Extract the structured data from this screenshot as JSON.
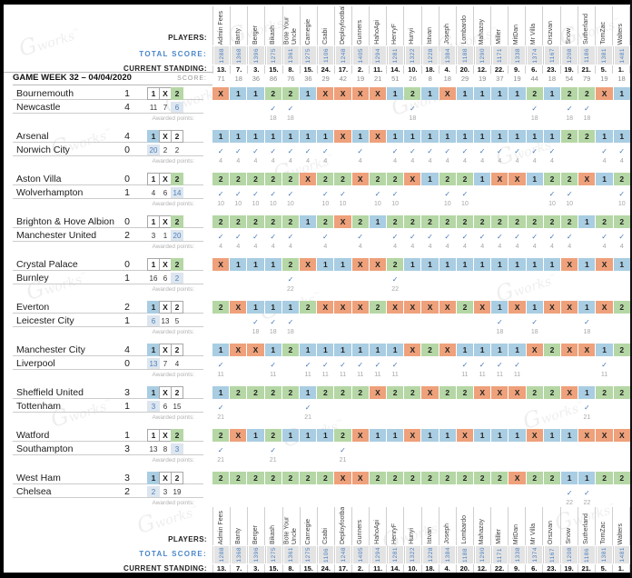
{
  "labels": {
    "players": "PLAYERS:",
    "total_score": "TOTAL SCORE:",
    "current_standing": "CURRENT STANDING:",
    "game_week": "GAME WEEK 32 – 04/04/2020",
    "score": "SCORE:",
    "awarded_points": "Awarded points:"
  },
  "outcome_labels": [
    "1",
    "X",
    "2"
  ],
  "colors": {
    "home_win": "#a9cde2",
    "draw": "#eea17b",
    "away_win": "#b5d7a5",
    "winning_count_bg": "#dde6ee",
    "accent_blue": "#4a7fc0"
  },
  "glyphs": {
    "check": "✓"
  },
  "watermark": {
    "symbol": "G",
    "text": "works",
    "tm": "™"
  },
  "players": [
    {
      "name": "Admin Fees",
      "total": "1288",
      "standing": "13.",
      "week_score": "71"
    },
    {
      "name": "Banty",
      "total": "1368",
      "standing": "7.",
      "week_score": "18"
    },
    {
      "name": "Berger",
      "total": "1396",
      "standing": "3.",
      "week_score": "36"
    },
    {
      "name": "Bikash",
      "total": "1275",
      "standing": "15.",
      "week_score": "86"
    },
    {
      "name": "Bote Your Uncle",
      "total": "1361",
      "standing": "8.",
      "week_score": "76"
    },
    {
      "name": "Carnegie",
      "total": "1275",
      "standing": "15.",
      "week_score": "36"
    },
    {
      "name": "Csabi",
      "total": "1106",
      "standing": "24.",
      "week_score": "29"
    },
    {
      "name": "Deployfootball",
      "total": "1248",
      "standing": "17.",
      "week_score": "42"
    },
    {
      "name": "Gunners",
      "total": "1405",
      "standing": "2.",
      "week_score": "19"
    },
    {
      "name": "HahoApi",
      "total": "1294",
      "standing": "11.",
      "week_score": "21"
    },
    {
      "name": "HenryF",
      "total": "1281",
      "standing": "14.",
      "week_score": "51"
    },
    {
      "name": "Hunyi",
      "total": "1322",
      "standing": "10.",
      "week_score": "26"
    },
    {
      "name": "Istvan",
      "total": "1228",
      "standing": "18.",
      "week_score": "8"
    },
    {
      "name": "Joseph",
      "total": "1384",
      "standing": "4.",
      "week_score": "18"
    },
    {
      "name": "Lombardo",
      "total": "1188",
      "standing": "20.",
      "week_score": "29"
    },
    {
      "name": "Mahazoy",
      "total": "1290",
      "standing": "12.",
      "week_score": "19"
    },
    {
      "name": "Miller",
      "total": "1171",
      "standing": "22.",
      "week_score": "37"
    },
    {
      "name": "MitDan",
      "total": "1338",
      "standing": "9.",
      "week_score": "19"
    },
    {
      "name": "Mr Villa",
      "total": "1374",
      "standing": "6.",
      "week_score": "44"
    },
    {
      "name": "Orszvan",
      "total": "1167",
      "standing": "23.",
      "week_score": "18"
    },
    {
      "name": "Snow",
      "total": "1208",
      "standing": "19.",
      "week_score": "54"
    },
    {
      "name": "Sutherland",
      "total": "1186",
      "standing": "21.",
      "week_score": "79"
    },
    {
      "name": "TomZac",
      "total": "1381",
      "standing": "5.",
      "week_score": "19"
    },
    {
      "name": "Walters",
      "total": "1481",
      "standing": "1.",
      "week_score": "18"
    }
  ],
  "matches": [
    {
      "home": "Bournemouth",
      "home_score": "1",
      "away": "Newcastle",
      "away_score": "4",
      "result": "2",
      "counts": [
        "11",
        "7",
        "6"
      ],
      "points": "18",
      "predictions": [
        "X",
        "1",
        "1",
        "2",
        "2",
        "1",
        "X",
        "X",
        "X",
        "X",
        "1",
        "2",
        "1",
        "X",
        "1",
        "1",
        "1",
        "1",
        "2",
        "1",
        "2",
        "2",
        "X",
        "1"
      ]
    },
    {
      "home": "Arsenal",
      "home_score": "4",
      "away": "Norwich City",
      "away_score": "0",
      "result": "1",
      "counts": [
        "20",
        "2",
        "2"
      ],
      "points": "4",
      "predictions": [
        "1",
        "1",
        "1",
        "1",
        "1",
        "1",
        "1",
        "X",
        "1",
        "X",
        "1",
        "1",
        "1",
        "1",
        "1",
        "1",
        "1",
        "1",
        "1",
        "1",
        "2",
        "2",
        "1",
        "1"
      ]
    },
    {
      "home": "Aston Villa",
      "home_score": "0",
      "away": "Wolverhampton",
      "away_score": "1",
      "result": "2",
      "counts": [
        "4",
        "6",
        "14"
      ],
      "points": "10",
      "predictions": [
        "2",
        "2",
        "2",
        "2",
        "2",
        "X",
        "2",
        "2",
        "X",
        "2",
        "2",
        "X",
        "1",
        "2",
        "2",
        "1",
        "X",
        "X",
        "1",
        "2",
        "2",
        "X",
        "1",
        "2"
      ]
    },
    {
      "home": "Brighton & Hove Albion",
      "home_score": "0",
      "away": "Manchester United",
      "away_score": "2",
      "result": "2",
      "counts": [
        "3",
        "1",
        "20"
      ],
      "points": "4",
      "predictions": [
        "2",
        "2",
        "2",
        "2",
        "2",
        "1",
        "2",
        "X",
        "2",
        "1",
        "2",
        "2",
        "2",
        "2",
        "2",
        "2",
        "2",
        "2",
        "2",
        "2",
        "2",
        "1",
        "2",
        "2"
      ]
    },
    {
      "home": "Crystal Palace",
      "home_score": "0",
      "away": "Burnley",
      "away_score": "1",
      "result": "2",
      "counts": [
        "16",
        "6",
        "2"
      ],
      "points": "22",
      "predictions": [
        "X",
        "1",
        "1",
        "1",
        "2",
        "X",
        "1",
        "1",
        "X",
        "X",
        "2",
        "1",
        "1",
        "1",
        "1",
        "1",
        "1",
        "1",
        "1",
        "1",
        "X",
        "1",
        "X",
        "1"
      ]
    },
    {
      "home": "Everton",
      "home_score": "2",
      "away": "Leicester City",
      "away_score": "1",
      "result": "1",
      "counts": [
        "6",
        "13",
        "5"
      ],
      "points": "18",
      "predictions": [
        "2",
        "X",
        "1",
        "1",
        "1",
        "2",
        "X",
        "X",
        "X",
        "2",
        "X",
        "X",
        "X",
        "X",
        "2",
        "X",
        "1",
        "X",
        "1",
        "X",
        "X",
        "1",
        "X",
        "2"
      ]
    },
    {
      "home": "Manchester City",
      "home_score": "4",
      "away": "Liverpool",
      "away_score": "0",
      "result": "1",
      "counts": [
        "13",
        "7",
        "4"
      ],
      "points": "11",
      "predictions": [
        "1",
        "X",
        "X",
        "1",
        "2",
        "1",
        "1",
        "1",
        "1",
        "1",
        "1",
        "X",
        "2",
        "X",
        "1",
        "1",
        "1",
        "1",
        "X",
        "2",
        "X",
        "X",
        "1",
        "2"
      ]
    },
    {
      "home": "Sheffield United",
      "home_score": "3",
      "away": "Tottenham",
      "away_score": "1",
      "result": "1",
      "counts": [
        "3",
        "6",
        "15"
      ],
      "points": "21",
      "predictions": [
        "1",
        "2",
        "2",
        "2",
        "2",
        "1",
        "2",
        "2",
        "2",
        "X",
        "2",
        "2",
        "X",
        "2",
        "2",
        "X",
        "X",
        "X",
        "2",
        "2",
        "X",
        "1",
        "2",
        "2"
      ]
    },
    {
      "home": "Watford",
      "home_score": "1",
      "away": "Southampton",
      "away_score": "3",
      "result": "2",
      "counts": [
        "13",
        "8",
        "3"
      ],
      "points": "21",
      "predictions": [
        "2",
        "X",
        "1",
        "2",
        "1",
        "1",
        "1",
        "2",
        "X",
        "1",
        "1",
        "X",
        "1",
        "1",
        "X",
        "1",
        "1",
        "1",
        "X",
        "1",
        "1",
        "X",
        "X",
        "X"
      ]
    },
    {
      "home": "West Ham",
      "home_score": "3",
      "away": "Chelsea",
      "away_score": "2",
      "result": "1",
      "counts": [
        "2",
        "3",
        "19"
      ],
      "points": "22",
      "predictions": [
        "2",
        "2",
        "2",
        "2",
        "2",
        "2",
        "2",
        "X",
        "X",
        "2",
        "2",
        "2",
        "2",
        "2",
        "2",
        "2",
        "2",
        "X",
        "2",
        "2",
        "1",
        "1",
        "2",
        "2"
      ]
    }
  ]
}
